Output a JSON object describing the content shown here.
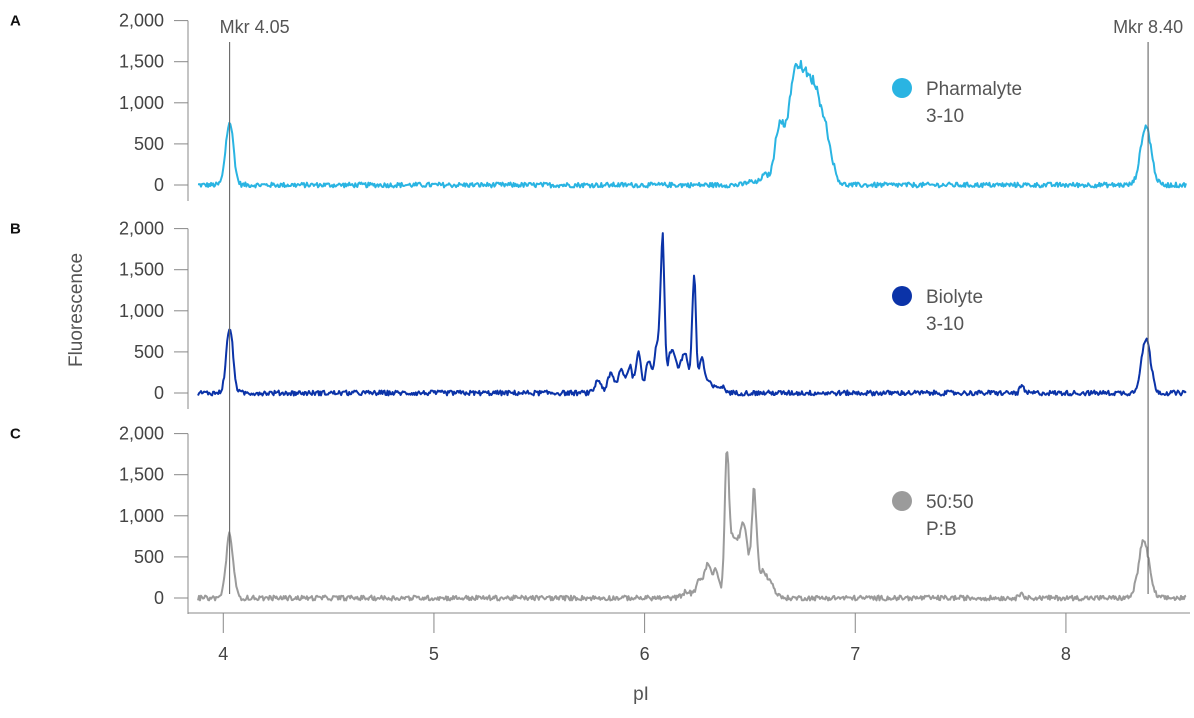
{
  "chart_data": {
    "type": "line",
    "xlabel": "pI",
    "ylabel": "Fluorescence",
    "xlim": [
      3.88,
      8.57
    ],
    "x_ticks": [
      4,
      5,
      6,
      7,
      8
    ],
    "x_tick_labels": [
      "4",
      "5",
      "6",
      "7",
      "8"
    ],
    "ylim": [
      0,
      2000
    ],
    "y_ticks": [
      0,
      500,
      1000,
      1500,
      2000
    ],
    "y_tick_labels": [
      "0",
      "500",
      "1,000",
      "1,500",
      "2,000"
    ],
    "markers": [
      {
        "label": "Mkr 4.05",
        "x": 4.03
      },
      {
        "label": "Mkr 8.40",
        "x": 8.39
      }
    ],
    "panels": [
      {
        "label": "A",
        "legend_line1": "Pharmalyte",
        "legend_line2": "3-10",
        "color": "#2ab4e2",
        "series": {
          "name": "Pharmalyte 3-10",
          "peaks": [
            {
              "x": 4.03,
              "height": 780,
              "width": 0.018
            },
            {
              "x": 6.5,
              "height": 40,
              "width": 0.02
            },
            {
              "x": 6.57,
              "height": 120,
              "width": 0.02
            },
            {
              "x": 6.64,
              "height": 720,
              "width": 0.022
            },
            {
              "x": 6.7,
              "height": 820,
              "width": 0.025
            },
            {
              "x": 6.74,
              "height": 980,
              "width": 0.03
            },
            {
              "x": 6.8,
              "height": 1060,
              "width": 0.035
            },
            {
              "x": 6.86,
              "height": 500,
              "width": 0.03
            },
            {
              "x": 8.38,
              "height": 720,
              "width": 0.025
            }
          ]
        }
      },
      {
        "label": "B",
        "legend_line1": "Biolyte",
        "legend_line2": "3-10",
        "color": "#0b33a8",
        "series": {
          "name": "Biolyte 3-10",
          "peaks": [
            {
              "x": 4.03,
              "height": 790,
              "width": 0.016
            },
            {
              "x": 5.78,
              "height": 150,
              "width": 0.015
            },
            {
              "x": 5.84,
              "height": 230,
              "width": 0.015
            },
            {
              "x": 5.89,
              "height": 280,
              "width": 0.015
            },
            {
              "x": 5.93,
              "height": 320,
              "width": 0.012
            },
            {
              "x": 5.97,
              "height": 500,
              "width": 0.012
            },
            {
              "x": 6.02,
              "height": 400,
              "width": 0.015
            },
            {
              "x": 6.06,
              "height": 600,
              "width": 0.012
            },
            {
              "x": 6.085,
              "height": 1800,
              "width": 0.009
            },
            {
              "x": 6.13,
              "height": 520,
              "width": 0.02
            },
            {
              "x": 6.19,
              "height": 480,
              "width": 0.02
            },
            {
              "x": 6.235,
              "height": 1400,
              "width": 0.009
            },
            {
              "x": 6.27,
              "height": 380,
              "width": 0.012
            },
            {
              "x": 6.3,
              "height": 130,
              "width": 0.02
            },
            {
              "x": 6.36,
              "height": 80,
              "width": 0.02
            },
            {
              "x": 7.79,
              "height": 100,
              "width": 0.008
            },
            {
              "x": 8.38,
              "height": 660,
              "width": 0.022
            }
          ]
        }
      },
      {
        "label": "C",
        "legend_line1": "50:50",
        "legend_line2": "P:B",
        "color": "#9b9b9b",
        "series": {
          "name": "50:50 P:B",
          "peaks": [
            {
              "x": 4.03,
              "height": 760,
              "width": 0.017
            },
            {
              "x": 6.2,
              "height": 80,
              "width": 0.02
            },
            {
              "x": 6.26,
              "height": 230,
              "width": 0.015
            },
            {
              "x": 6.3,
              "height": 400,
              "width": 0.015
            },
            {
              "x": 6.34,
              "height": 330,
              "width": 0.015
            },
            {
              "x": 6.39,
              "height": 1600,
              "width": 0.01
            },
            {
              "x": 6.42,
              "height": 700,
              "width": 0.02
            },
            {
              "x": 6.47,
              "height": 880,
              "width": 0.02
            },
            {
              "x": 6.52,
              "height": 1230,
              "width": 0.012
            },
            {
              "x": 6.56,
              "height": 300,
              "width": 0.02
            },
            {
              "x": 6.6,
              "height": 150,
              "width": 0.02
            },
            {
              "x": 7.79,
              "height": 90,
              "width": 0.008
            },
            {
              "x": 8.37,
              "height": 690,
              "width": 0.025
            }
          ]
        }
      }
    ]
  }
}
